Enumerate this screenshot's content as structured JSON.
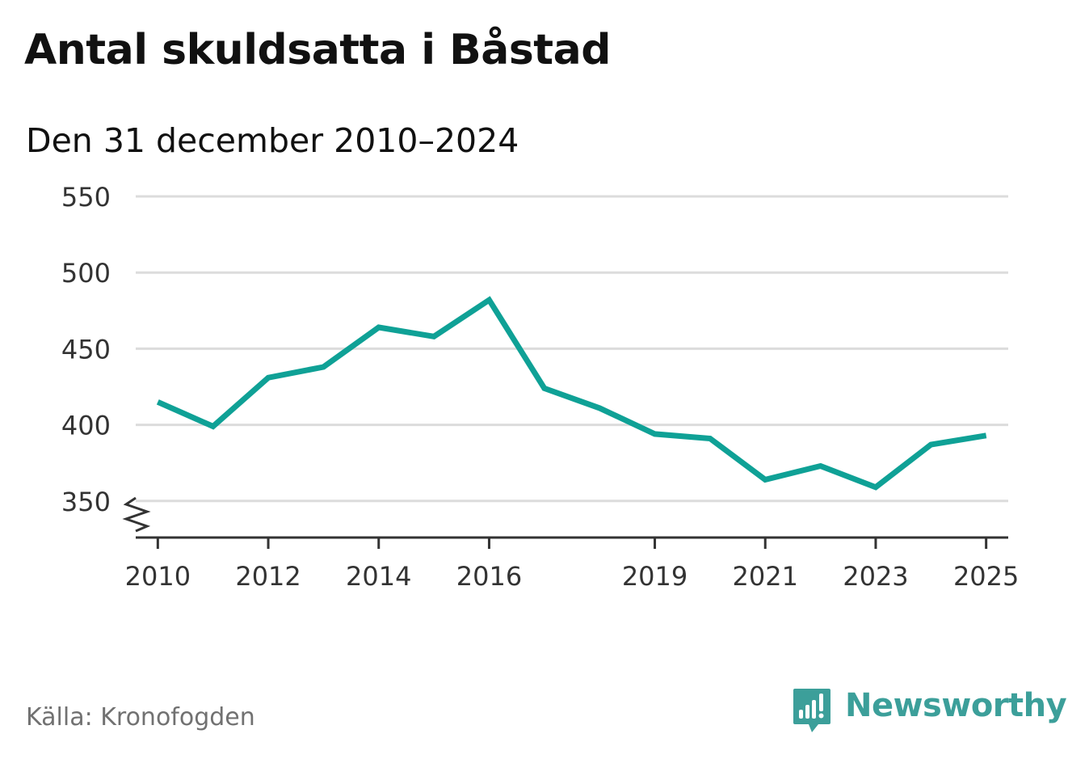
{
  "header": {
    "title": "Antal skuldsatta i Båstad",
    "subtitle": "Den 31 december 2010–2024"
  },
  "footer": {
    "source": "Källa: Kronofogden",
    "brand": "Newsworthy"
  },
  "colors": {
    "line": "#0fa196",
    "grid": "#dcdcdc",
    "axis": "#333333",
    "brand": "#3c9f9a"
  },
  "chart_data": {
    "type": "line",
    "title": "Antal skuldsatta i Båstad",
    "subtitle": "Den 31 december 2010–2024",
    "xlabel": "",
    "ylabel": "",
    "xlim": [
      2009.6,
      2025.4
    ],
    "ylim": [
      326,
      550
    ],
    "y_ticks": [
      350,
      400,
      450,
      500,
      550
    ],
    "y_tick_labels": [
      "350",
      "400",
      "450",
      "500",
      "550"
    ],
    "x_ticks": [
      2010,
      2011,
      2012,
      2013,
      2014,
      2015,
      2016,
      2017,
      2018,
      2019,
      2020,
      2021,
      2022,
      2023,
      2024,
      2025
    ],
    "x_tick_labels": [
      "2010",
      "2012",
      "2014",
      "2016",
      "2019",
      "2021",
      "2023",
      "2025"
    ],
    "x_tick_label_values": [
      2010,
      2012,
      2014,
      2016,
      2019,
      2021,
      2023,
      2025
    ],
    "grid": true,
    "axis_break": true,
    "series": [
      {
        "name": "Antal skuldsatta",
        "x": [
          2010,
          2011,
          2012,
          2013,
          2014,
          2015,
          2016,
          2017,
          2018,
          2019,
          2020,
          2021,
          2022,
          2023,
          2024,
          2025
        ],
        "values": [
          415,
          399,
          431,
          438,
          464,
          458,
          482,
          424,
          411,
          394,
          391,
          364,
          373,
          359,
          387,
          393
        ]
      }
    ]
  }
}
